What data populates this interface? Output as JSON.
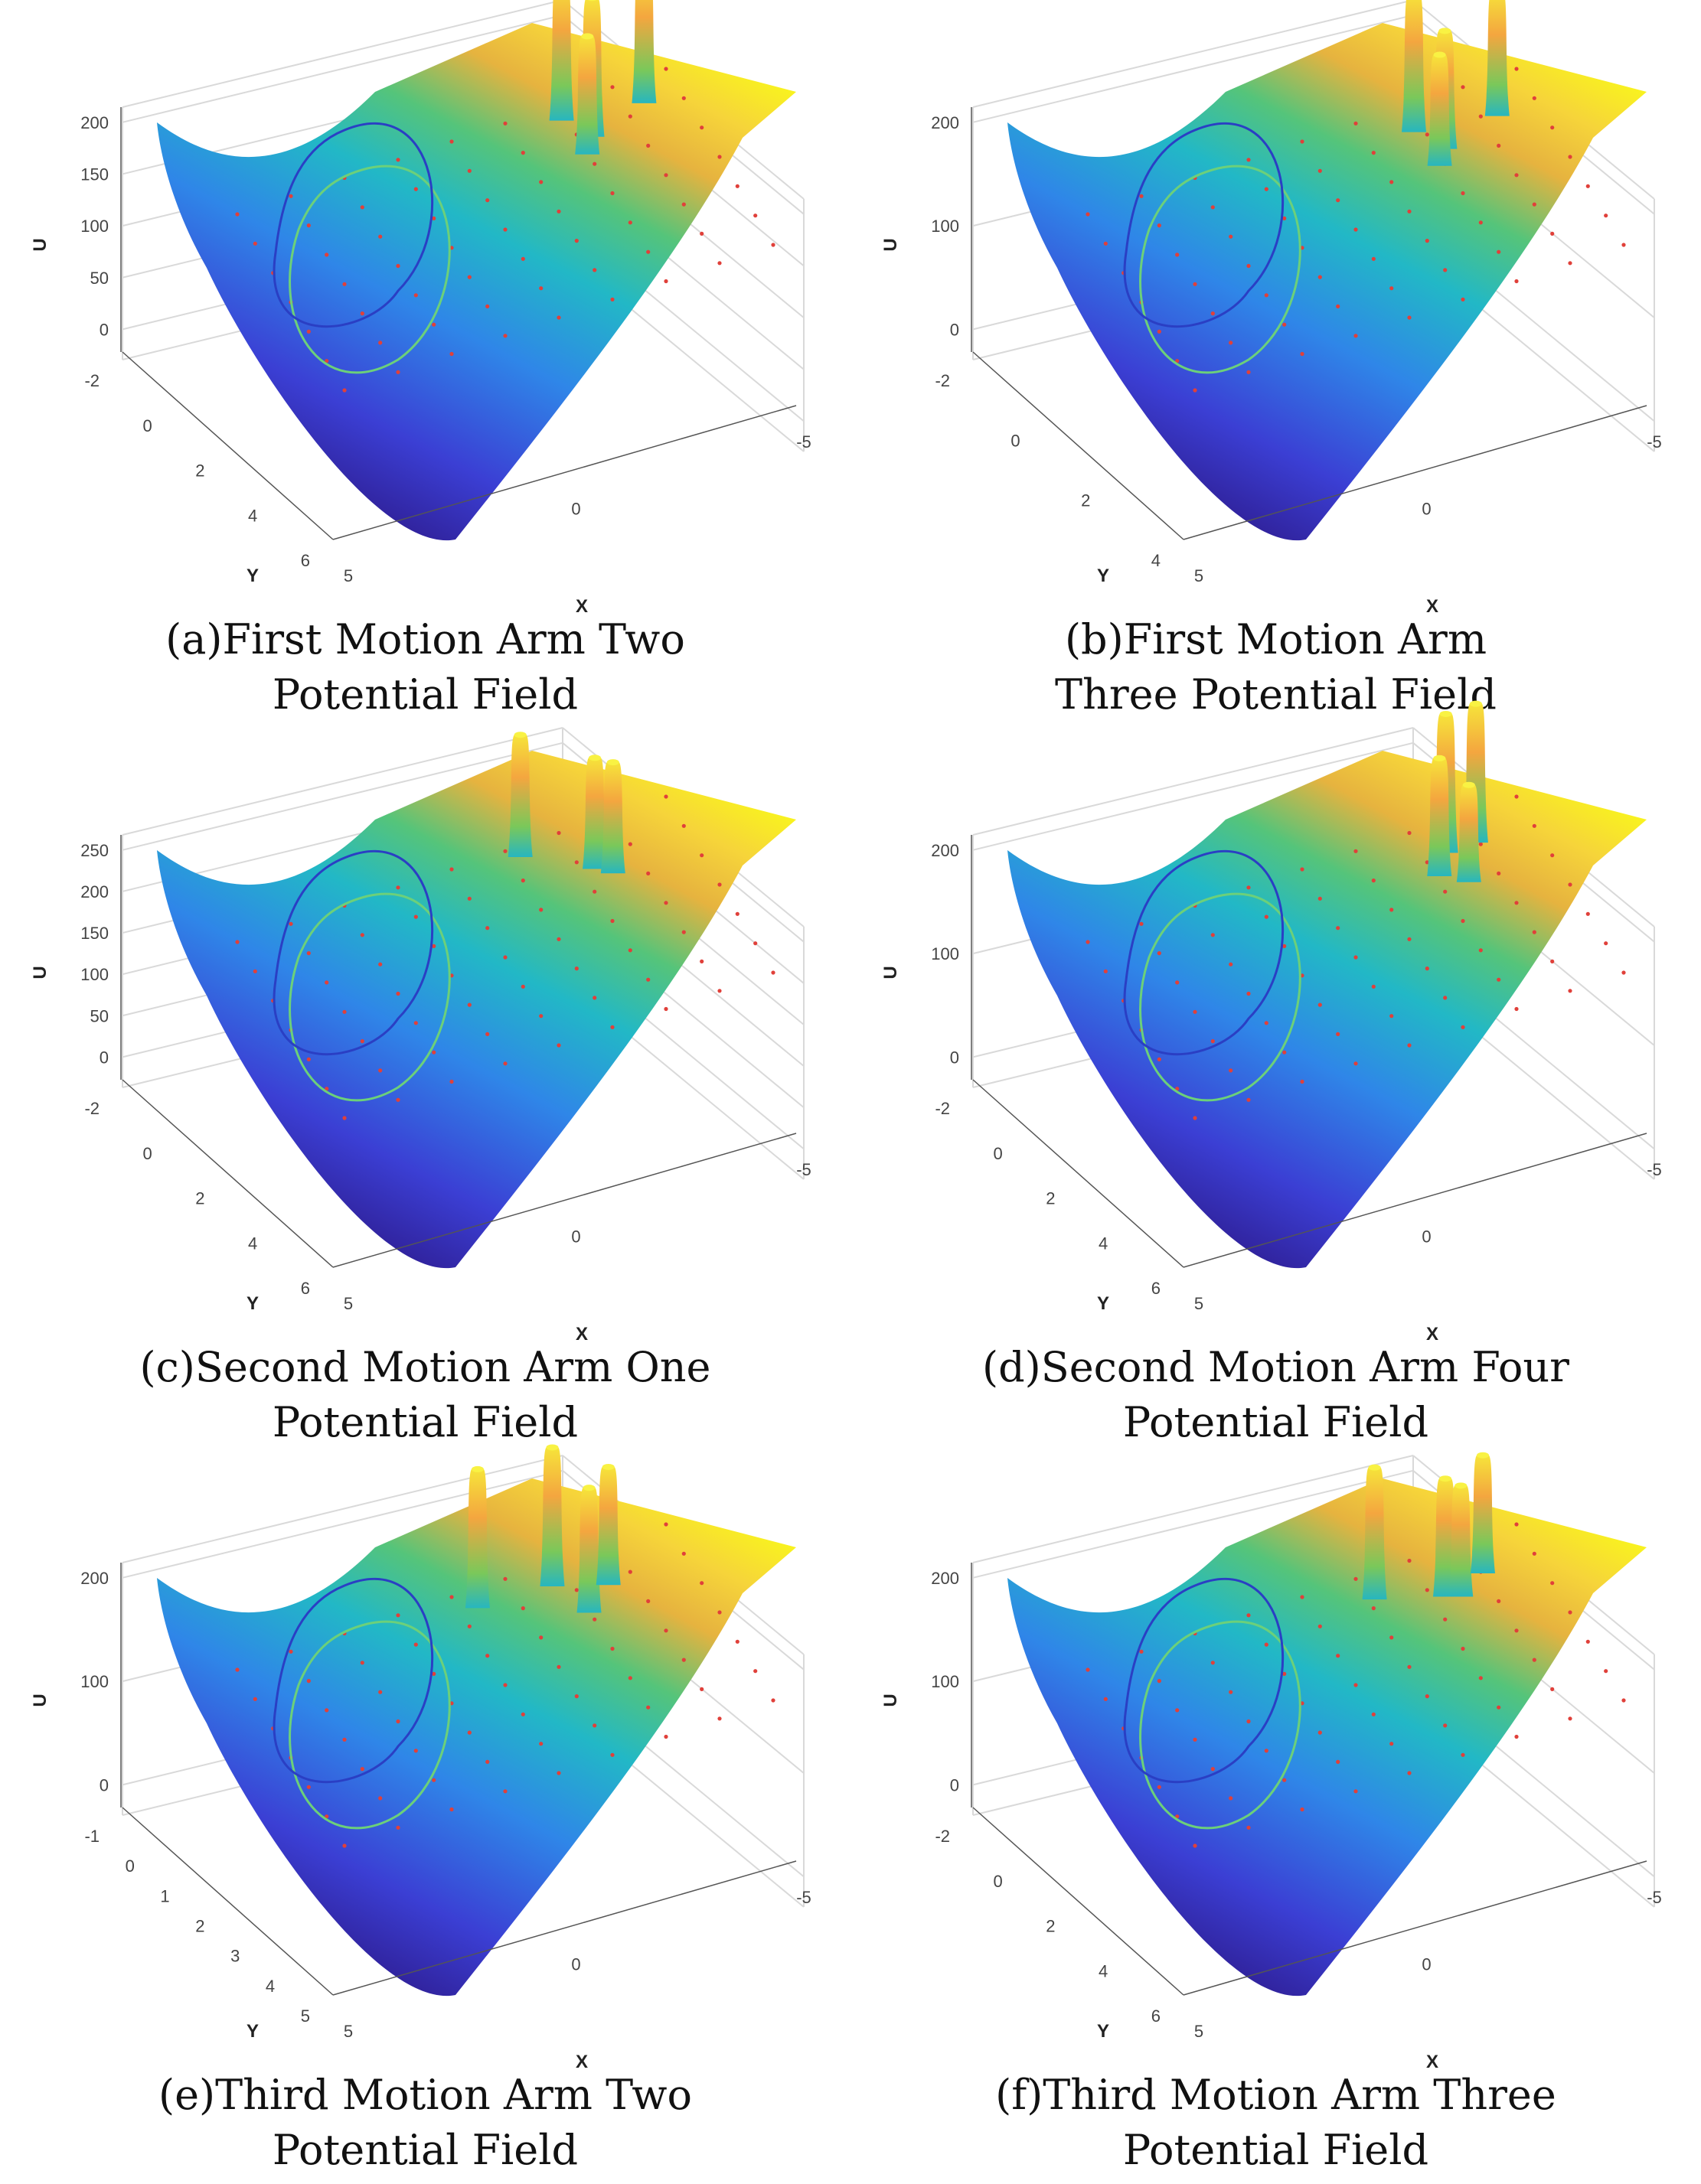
{
  "panels": [
    {
      "caption_line1": "(a)First Motion Arm Two",
      "caption_line2": "Potential Field",
      "chart_data": {
        "type": "surface",
        "xlabel": "X",
        "ylabel": "Y",
        "zlabel": "U",
        "x_ticks": [
          "5",
          "0",
          "-5"
        ],
        "y_ticks": [
          "-2",
          "0",
          "2",
          "4",
          "6"
        ],
        "z_ticks": [
          "0",
          "50",
          "100",
          "150",
          "200"
        ],
        "xlim": [
          -5,
          5
        ],
        "ylim": [
          -2,
          6
        ],
        "zlim": [
          0,
          200
        ],
        "peaks": [
          {
            "x": -1.6,
            "y": -1.2,
            "u": 200
          },
          {
            "x": -2.0,
            "y": -0.2,
            "u": 200
          },
          {
            "x": -1.7,
            "y": 0.4,
            "u": 170
          },
          {
            "x": -3.4,
            "y": -0.8,
            "u": 190
          }
        ]
      }
    },
    {
      "caption_line1": "(b)First Motion Arm",
      "caption_line2": "Three Potential Field",
      "chart_data": {
        "type": "surface",
        "xlabel": "X",
        "ylabel": "Y",
        "zlabel": "U",
        "x_ticks": [
          "5",
          "0",
          "-5"
        ],
        "y_ticks": [
          "-2",
          "0",
          "2",
          "4"
        ],
        "z_ticks": [
          "0",
          "100",
          "200"
        ],
        "xlim": [
          -5,
          5
        ],
        "ylim": [
          -2,
          5
        ],
        "zlim": [
          0,
          200
        ],
        "peaks": [
          {
            "x": -1.5,
            "y": -0.9,
            "u": 200
          },
          {
            "x": -1.9,
            "y": 0.0,
            "u": 170
          },
          {
            "x": -1.6,
            "y": 0.5,
            "u": 160
          },
          {
            "x": -3.3,
            "y": -0.5,
            "u": 180
          }
        ]
      }
    },
    {
      "caption_line1": "(c)Second Motion Arm One",
      "caption_line2": "Potential Field",
      "chart_data": {
        "type": "surface",
        "xlabel": "X",
        "ylabel": "Y",
        "zlabel": "U",
        "x_ticks": [
          "5",
          "0",
          "-5"
        ],
        "y_ticks": [
          "-2",
          "0",
          "2",
          "4",
          "6"
        ],
        "z_ticks": [
          "0",
          "50",
          "100",
          "150",
          "200",
          "250"
        ],
        "xlim": [
          -5,
          5
        ],
        "ylim": [
          -2,
          6
        ],
        "zlim": [
          0,
          250
        ],
        "peaks": [
          {
            "x": -0.7,
            "y": -1.4,
            "u": 220
          },
          {
            "x": -2.0,
            "y": 0.0,
            "u": 200
          },
          {
            "x": -2.3,
            "y": 0.4,
            "u": 200
          }
        ]
      }
    },
    {
      "caption_line1": "(d)Second Motion Arm Four",
      "caption_line2": "Potential Field",
      "chart_data": {
        "type": "surface",
        "xlabel": "X",
        "ylabel": "Y",
        "zlabel": "U",
        "x_ticks": [
          "5",
          "0",
          "-5"
        ],
        "y_ticks": [
          "-2",
          "0",
          "2",
          "4",
          "6"
        ],
        "z_ticks": [
          "0",
          "100",
          "200"
        ],
        "xlim": [
          -5,
          5
        ],
        "ylim": [
          -2,
          6
        ],
        "zlim": [
          0,
          200
        ],
        "peaks": [
          {
            "x": -2.2,
            "y": -0.6,
            "u": 200
          },
          {
            "x": -2.9,
            "y": -0.6,
            "u": 200
          },
          {
            "x": -1.8,
            "y": 0.2,
            "u": 170
          },
          {
            "x": -2.3,
            "y": 0.8,
            "u": 140
          }
        ]
      }
    },
    {
      "caption_line1": "(e)Third Motion Arm Two",
      "caption_line2": "Potential Field",
      "chart_data": {
        "type": "surface",
        "xlabel": "X",
        "ylabel": "Y",
        "zlabel": "U",
        "x_ticks": [
          "5",
          "0",
          "-5"
        ],
        "y_ticks": [
          "-1",
          "0",
          "1",
          "2",
          "3",
          "4",
          "5"
        ],
        "z_ticks": [
          "0",
          "100",
          "200"
        ],
        "xlim": [
          -5,
          5
        ],
        "ylim": [
          -1,
          5
        ],
        "zlim": [
          0,
          200
        ],
        "peaks": [
          {
            "x": 0.4,
            "y": -0.3,
            "u": 200
          },
          {
            "x": -1.3,
            "y": -0.2,
            "u": 200
          },
          {
            "x": -1.7,
            "y": 0.9,
            "u": 180
          },
          {
            "x": -2.4,
            "y": 0.3,
            "u": 170
          }
        ]
      }
    },
    {
      "caption_line1": "(f)Third Motion Arm Three",
      "caption_line2": "Potential Field",
      "chart_data": {
        "type": "surface",
        "xlabel": "X",
        "ylabel": "Y",
        "zlabel": "U",
        "x_ticks": [
          "5",
          "0",
          "-5"
        ],
        "y_ticks": [
          "-2",
          "0",
          "2",
          "4",
          "6"
        ],
        "z_ticks": [
          "0",
          "100",
          "200"
        ],
        "xlim": [
          -5,
          5
        ],
        "ylim": [
          -2,
          6
        ],
        "zlim": [
          0,
          200
        ],
        "peaks": [
          {
            "x": -0.6,
            "y": -0.8,
            "u": 190
          },
          {
            "x": -2.0,
            "y": 0.0,
            "u": 170
          },
          {
            "x": -2.3,
            "y": 0.2,
            "u": 160
          },
          {
            "x": -3.0,
            "y": -0.4,
            "u": 170
          }
        ]
      }
    }
  ]
}
